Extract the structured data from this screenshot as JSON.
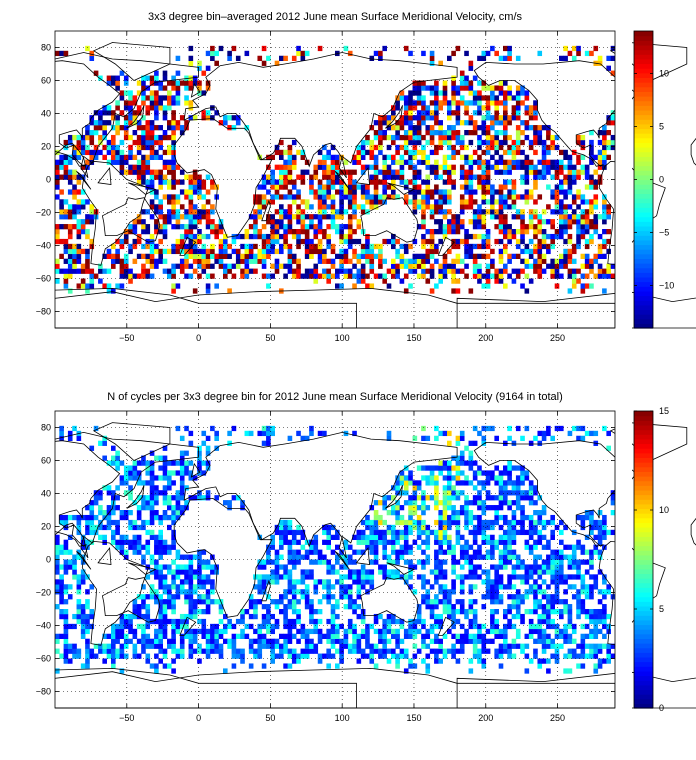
{
  "chart_data": [
    {
      "type": "heatmap",
      "title": "3x3 degree bin–averaged 2012 June mean Surface Meridional Velocity, cm/s",
      "xlabel": "",
      "ylabel": "",
      "xlim": [
        -100,
        290
      ],
      "ylim": [
        -90,
        90
      ],
      "x_ticks": [
        -50,
        0,
        50,
        100,
        150,
        200,
        250
      ],
      "y_ticks": [
        80,
        60,
        40,
        20,
        0,
        -20,
        -40,
        -60,
        -80
      ],
      "grid": true,
      "bin_size_deg": 3,
      "colorbar": {
        "range": [
          -14,
          14
        ],
        "ticks": [
          10,
          5,
          0,
          -5,
          -10
        ],
        "colormap": "jet"
      }
    },
    {
      "type": "heatmap",
      "title": "N of cycles per 3x3 degree bin for 2012 June mean Surface Meridional Velocity (9164 in total)",
      "xlabel": "",
      "ylabel": "",
      "xlim": [
        -100,
        290
      ],
      "ylim": [
        -90,
        90
      ],
      "x_ticks": [
        -50,
        0,
        50,
        100,
        150,
        200,
        250
      ],
      "y_ticks": [
        80,
        60,
        40,
        20,
        0,
        -20,
        -40,
        -60,
        -80
      ],
      "grid": true,
      "bin_size_deg": 3,
      "colorbar": {
        "range": [
          0,
          15
        ],
        "ticks": [
          15,
          10,
          5,
          0
        ],
        "colormap": "jet"
      }
    }
  ]
}
